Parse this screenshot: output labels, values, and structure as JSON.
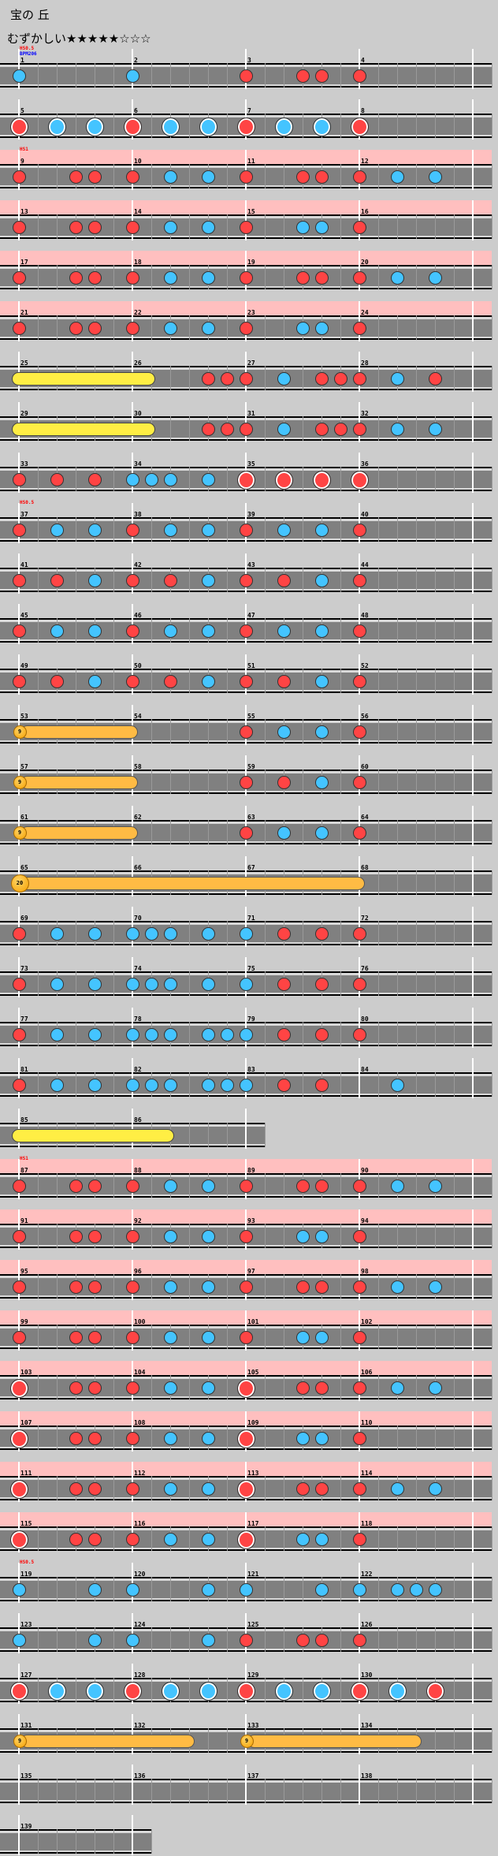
{
  "header": {
    "title": "宝の 丘",
    "difficulty": "むずかしい",
    "stars": "★★★★★☆☆☆",
    "stars_filled": 5,
    "stars_total": 8
  },
  "legend": {
    "d": "don (red)",
    "k": "ka (blue)",
    "D": "big don",
    "K": "big ka"
  },
  "colors": {
    "don": "#ff4444",
    "ka": "#44c4ff",
    "roll": "#ffee44",
    "balloon": "#ffbb44",
    "gogo_band": "#ffbfbf",
    "hs_label": "#ff0000",
    "bpm_label": "#0000ff"
  },
  "rows": [
    {
      "measures": [
        1,
        2,
        3,
        4
      ],
      "notes": "k.....k.....d..dd.d.....",
      "ann": [
        "HS0.5",
        "BPM206"
      ]
    },
    {
      "measures": [
        5,
        6,
        7,
        8
      ],
      "notes": "D.K.K.D.K.K.D.K.K.D....."
    },
    {
      "measures": [
        9,
        10,
        11,
        12
      ],
      "notes": "d..dd.d.k.k.d..dd.d.k.k.",
      "pink": true,
      "ann": [
        "HS1"
      ]
    },
    {
      "measures": [
        13,
        14,
        15,
        16
      ],
      "notes": "d..dd.d.k.k.d..kk.d.....",
      "pink": true
    },
    {
      "measures": [
        17,
        18,
        19,
        20
      ],
      "notes": "d..dd.d.k.k.d..dd.d.k.k.",
      "pink": true
    },
    {
      "measures": [
        21,
        22,
        23,
        24
      ],
      "notes": "d..dd.d.k.k.d..kk.d.....",
      "pink": true
    },
    {
      "measures": [
        25,
        26,
        27,
        28
      ],
      "notes": "..........ddd.k.ddd.k.d.",
      "long": [
        {
          "type": "roll",
          "start": 0,
          "end": 7
        }
      ]
    },
    {
      "measures": [
        29,
        30,
        31,
        32
      ],
      "notes": "..........ddd.k.ddd.k.k.",
      "long": [
        {
          "type": "roll",
          "start": 0,
          "end": 7
        }
      ]
    },
    {
      "measures": [
        33,
        34,
        35,
        36
      ],
      "notes": "d.d.d.kkk.k.D.D.D.D....."
    },
    {
      "measures": [
        37,
        38,
        39,
        40
      ],
      "notes": "d.k.k.d.k.k.d.k.k.d.....",
      "ann": [
        "HS0.5"
      ]
    },
    {
      "measures": [
        41,
        42,
        43,
        44
      ],
      "notes": "d.d.k.d.d.k.d.d.k.d....."
    },
    {
      "measures": [
        45,
        46,
        47,
        48
      ],
      "notes": "d.k.k.d.k.k.d.k.k.d....."
    },
    {
      "measures": [
        49,
        50,
        51,
        52
      ],
      "notes": "d.d.k.d.d.k.d.d.k.d....."
    },
    {
      "measures": [
        53,
        54,
        55,
        56
      ],
      "notes": "............d.k.k.d.....",
      "long": [
        {
          "type": "balloon",
          "start": 0,
          "end": 6,
          "count": "9"
        }
      ]
    },
    {
      "measures": [
        57,
        58,
        59,
        60
      ],
      "notes": "............d.d.k.d.....",
      "long": [
        {
          "type": "balloon",
          "start": 0,
          "end": 6,
          "count": "9"
        }
      ]
    },
    {
      "measures": [
        61,
        62,
        63,
        64
      ],
      "notes": "............d.k.k.d.....",
      "long": [
        {
          "type": "balloon",
          "start": 0,
          "end": 6,
          "count": "9"
        }
      ]
    },
    {
      "measures": [
        65,
        66,
        67,
        68
      ],
      "notes": "........................",
      "long": [
        {
          "type": "balloon",
          "start": 0,
          "end": 18,
          "count": "20",
          "big": true
        }
      ]
    },
    {
      "measures": [
        69,
        70,
        71,
        72
      ],
      "notes": "d.k.k.kkk.k.k.d.d.d....."
    },
    {
      "measures": [
        73,
        74,
        75,
        76
      ],
      "notes": "d.k.k.kkk.k.k.d.d.d....."
    },
    {
      "measures": [
        77,
        78,
        79,
        80
      ],
      "notes": "d.k.k.kkk.kkk.d.d.d....."
    },
    {
      "measures": [
        81,
        82,
        83,
        84
      ],
      "notes": "d.k.k.kkk.kkk.d.d...k..."
    },
    {
      "measures": [
        85,
        86
      ],
      "notes": "............",
      "long": [
        {
          "type": "roll",
          "start": 0,
          "end": 8
        }
      ]
    },
    {
      "measures": [
        87,
        88,
        89,
        90
      ],
      "notes": "d..dd.d.k.k.d..dd.d.k.k.",
      "pink": true,
      "ann": [
        "HS1"
      ]
    },
    {
      "measures": [
        91,
        92,
        93,
        94
      ],
      "notes": "d..dd.d.k.k.d..kk.d.....",
      "pink": true
    },
    {
      "measures": [
        95,
        96,
        97,
        98
      ],
      "notes": "d..dd.d.k.k.d..dd.d.k.k.",
      "pink": true
    },
    {
      "measures": [
        99,
        100,
        101,
        102
      ],
      "notes": "d..dd.d.k.k.d..kk.d.....",
      "pink": true
    },
    {
      "measures": [
        103,
        104,
        105,
        106
      ],
      "notes": "D..dd.d.k.k.D..dd.d.k.k.",
      "pink": true
    },
    {
      "measures": [
        107,
        108,
        109,
        110
      ],
      "notes": "D..dd.d.k.k.D..kk.d.....",
      "pink": true
    },
    {
      "measures": [
        111,
        112,
        113,
        114
      ],
      "notes": "D..dd.d.k.k.D..dd.d.k.k.",
      "pink": true
    },
    {
      "measures": [
        115,
        116,
        117,
        118
      ],
      "notes": "D..dd.d.k.k.D..kk.d.....",
      "pink": true
    },
    {
      "measures": [
        119,
        120,
        121,
        122
      ],
      "notes": "k...k.k...k.k...k.k.kkk.",
      "ann": [
        "HS0.5"
      ]
    },
    {
      "measures": [
        123,
        124,
        125,
        126
      ],
      "notes": "k...k.k...k.d..dd.d....."
    },
    {
      "measures": [
        127,
        128,
        129,
        130
      ],
      "notes": "D.K.K.D.K.K.D.K.K.D.K.D."
    },
    {
      "measures": [
        131,
        132,
        133,
        134
      ],
      "notes": "........................",
      "long": [
        {
          "type": "balloon",
          "start": 0,
          "end": 9,
          "count": "9"
        },
        {
          "type": "balloon",
          "start": 12,
          "end": 21,
          "count": "9"
        }
      ]
    },
    {
      "measures": [
        135,
        136,
        137,
        138
      ],
      "notes": "........................"
    },
    {
      "measures": [
        139
      ],
      "notes": "......"
    }
  ]
}
